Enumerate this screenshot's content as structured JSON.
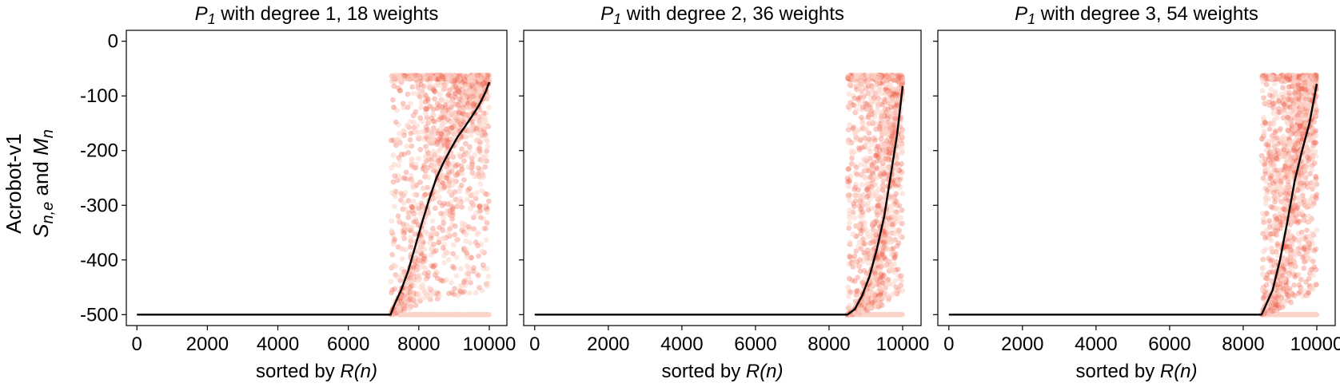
{
  "figure": {
    "row_label": "Acrobot-v1",
    "ylabel_prefix": "S",
    "ylabel_sub1": "n,e",
    "ylabel_mid": " and ",
    "ylabel_var2": "M",
    "ylabel_sub2": "n",
    "xlabel_prefix": "sorted by ",
    "xlabel_var": "R(n)",
    "colors": {
      "scatter": "#f26b55",
      "scatter_light": "#fbd3c9",
      "mean_line": "#000000",
      "axis": "#000000"
    }
  },
  "chart_data": [
    {
      "type": "scatter",
      "title_var": "P",
      "title_sub": "1",
      "title_rest": " with degree 1, 18 weights",
      "xlim": [
        -300,
        10500
      ],
      "ylim": [
        -520,
        20
      ],
      "xticks": [
        0,
        2000,
        4000,
        6000,
        8000,
        10000
      ],
      "yticks": [
        0,
        -100,
        -200,
        -300,
        -400,
        -500
      ],
      "grid": false,
      "scatter_range": {
        "x_start": 7200,
        "x_end": 10000,
        "y_min": -500,
        "y_max": -62
      },
      "series": [
        {
          "kind": "line",
          "x": [
            0,
            7200,
            7300,
            7500,
            7700,
            7900,
            8100,
            8300,
            8500,
            8700,
            8900,
            9100,
            9300,
            9500,
            9700,
            9900,
            10000
          ],
          "y": [
            -500,
            -500,
            -483,
            -455,
            -420,
            -375,
            -330,
            -288,
            -250,
            -222,
            -198,
            -175,
            -157,
            -138,
            -118,
            -92,
            -75
          ]
        }
      ]
    },
    {
      "type": "scatter",
      "title_var": "P",
      "title_sub": "1",
      "title_rest": " with degree 2, 36 weights",
      "xlim": [
        -300,
        10500
      ],
      "ylim": [
        -520,
        20
      ],
      "xticks": [
        0,
        2000,
        4000,
        6000,
        8000,
        10000
      ],
      "yticks": [
        0,
        -100,
        -200,
        -300,
        -400,
        -500
      ],
      "grid": false,
      "scatter_range": {
        "x_start": 8500,
        "x_end": 10000,
        "y_min": -500,
        "y_max": -62
      },
      "series": [
        {
          "kind": "line",
          "x": [
            0,
            8500,
            8700,
            8900,
            9100,
            9300,
            9500,
            9700,
            9850,
            10000
          ],
          "y": [
            -500,
            -500,
            -490,
            -465,
            -430,
            -380,
            -320,
            -235,
            -170,
            -82
          ]
        }
      ]
    },
    {
      "type": "scatter",
      "title_var": "P",
      "title_sub": "1",
      "title_rest": " with degree 3, 54 weights",
      "xlim": [
        -300,
        10500
      ],
      "ylim": [
        -520,
        20
      ],
      "xticks": [
        0,
        2000,
        4000,
        6000,
        8000,
        10000
      ],
      "yticks": [
        0,
        -100,
        -200,
        -300,
        -400,
        -500
      ],
      "grid": false,
      "scatter_range": {
        "x_start": 8500,
        "x_end": 10000,
        "y_min": -500,
        "y_max": -62
      },
      "series": [
        {
          "kind": "line",
          "x": [
            0,
            8500,
            8600,
            8800,
            9000,
            9200,
            9400,
            9600,
            9800,
            10000
          ],
          "y": [
            -500,
            -500,
            -485,
            -455,
            -400,
            -330,
            -255,
            -200,
            -150,
            -78
          ]
        }
      ]
    }
  ]
}
